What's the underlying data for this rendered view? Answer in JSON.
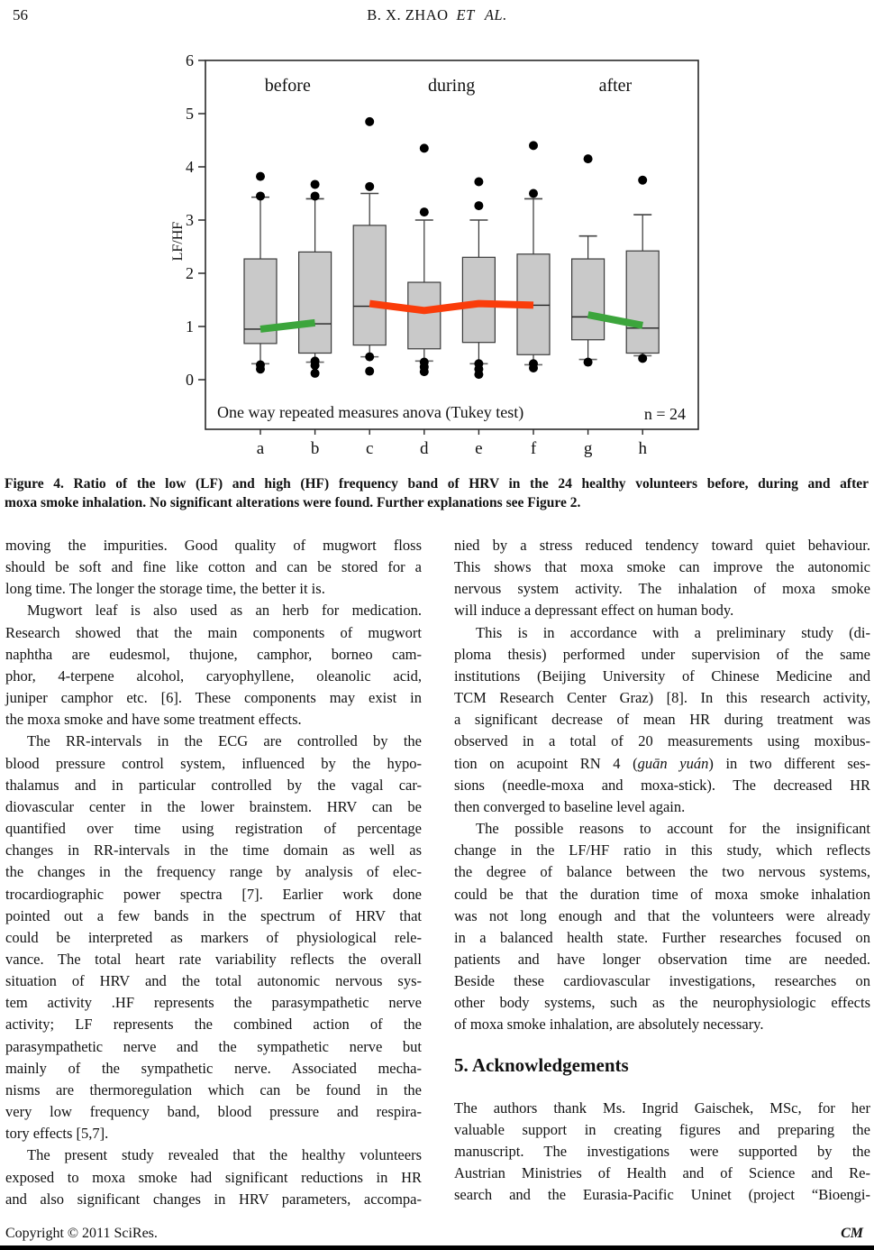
{
  "page": {
    "number": "56",
    "running_title": "B. X. ZHAO",
    "running_title_suffix": "ET AL.",
    "footer_left": "Copyright © 2011 SciRes.",
    "footer_right": "CM"
  },
  "figure": {
    "caption_lines": [
      {
        "text": "Figure 4. Ratio of the low (LF) and high (HF) frequency band of HRV in the 24 healthy volunteers before, during and after"
      },
      {
        "text": "moxa smoke inhalation. No significant alterations were found. Further explanations see Figure 2.",
        "end": true
      }
    ]
  },
  "chart_data": {
    "type": "boxplot",
    "ylabel": "LF/HF",
    "ylim": [
      0,
      6
    ],
    "yticks": [
      0,
      1,
      2,
      3,
      4,
      5,
      6
    ],
    "categories": [
      "a",
      "b",
      "c",
      "d",
      "e",
      "f",
      "g",
      "h"
    ],
    "group_labels": [
      {
        "label": "before",
        "from": 0,
        "to": 1
      },
      {
        "label": "during",
        "from": 2,
        "to": 5
      },
      {
        "label": "after",
        "from": 6,
        "to": 7
      }
    ],
    "annotation": "One way repeated measures anova (Tukey test)",
    "sample_size_label": "n = 24",
    "box_fill": "#c9c9c9",
    "accent_green": "#3ca53c",
    "accent_red": "#fa3c0a",
    "boxes": [
      {
        "category": "a",
        "whisker_low": 0.3,
        "q1": 0.68,
        "median": 0.95,
        "q3": 2.27,
        "whisker_high": 3.43,
        "outliers_high": [
          3.82,
          3.45
        ],
        "outliers_low": [
          0.28,
          0.2
        ]
      },
      {
        "category": "b",
        "whisker_low": 0.33,
        "q1": 0.5,
        "median": 1.05,
        "q3": 2.4,
        "whisker_high": 3.4,
        "outliers_high": [
          3.67,
          3.45
        ],
        "outliers_low": [
          0.35,
          0.27,
          0.12
        ]
      },
      {
        "category": "c",
        "whisker_low": 0.43,
        "q1": 0.65,
        "median": 1.38,
        "q3": 2.9,
        "whisker_high": 3.5,
        "outliers_high": [
          4.85,
          3.63
        ],
        "outliers_low": [
          0.43,
          0.16
        ]
      },
      {
        "category": "d",
        "whisker_low": 0.35,
        "q1": 0.58,
        "median": 1.3,
        "q3": 1.83,
        "whisker_high": 3.0,
        "outliers_high": [
          4.35,
          3.15
        ],
        "outliers_low": [
          0.33,
          0.24,
          0.15
        ]
      },
      {
        "category": "e",
        "whisker_low": 0.3,
        "q1": 0.7,
        "median": 1.38,
        "q3": 2.3,
        "whisker_high": 3.0,
        "outliers_high": [
          3.72,
          3.27
        ],
        "outliers_low": [
          0.3,
          0.2,
          0.1
        ]
      },
      {
        "category": "f",
        "whisker_low": 0.28,
        "q1": 0.47,
        "median": 1.4,
        "q3": 2.36,
        "whisker_high": 3.4,
        "outliers_high": [
          4.4,
          3.5
        ],
        "outliers_low": [
          0.3,
          0.22
        ]
      },
      {
        "category": "g",
        "whisker_low": 0.38,
        "q1": 0.75,
        "median": 1.18,
        "q3": 2.27,
        "whisker_high": 2.7,
        "outliers_high": [
          4.15
        ],
        "outliers_low": [
          0.33
        ]
      },
      {
        "category": "h",
        "whisker_low": 0.45,
        "q1": 0.5,
        "median": 0.97,
        "q3": 2.42,
        "whisker_high": 3.1,
        "outliers_high": [
          3.75
        ],
        "outliers_low": [
          0.4
        ]
      }
    ],
    "trend_lines": [
      {
        "name": "before-green",
        "color": "#3ca53c",
        "points": [
          {
            "cat": "a",
            "value": 0.95
          },
          {
            "cat": "b",
            "value": 1.07
          }
        ]
      },
      {
        "name": "during-red",
        "color": "#fa3c0a",
        "points": [
          {
            "cat": "c",
            "value": 1.43
          },
          {
            "cat": "d",
            "value": 1.3
          },
          {
            "cat": "e",
            "value": 1.43
          },
          {
            "cat": "f",
            "value": 1.4
          }
        ]
      },
      {
        "name": "after-green",
        "color": "#3ca53c",
        "points": [
          {
            "cat": "g",
            "value": 1.22
          },
          {
            "cat": "h",
            "value": 1.02
          }
        ]
      }
    ]
  },
  "body": {
    "left_column": {
      "lines": [
        {
          "text": "moving the impurities. Good quality of mugwort floss"
        },
        {
          "text": "should be soft and fine like cotton and can be stored for a"
        },
        {
          "text": "long time. The longer the storage time, the better it is.",
          "end": true
        },
        {
          "text": "Mugwort leaf is also used as an herb for medication.",
          "indent": true
        },
        {
          "text": "Research showed that the main components of mugwort"
        },
        {
          "text": "naphtha are eudesmol, thujone, camphor, borneo cam-"
        },
        {
          "text": "phor, 4-terpene alcohol, caryophyllene, oleanolic acid,"
        },
        {
          "text": "juniper camphor etc. [6]. These components may exist in"
        },
        {
          "text": "the moxa smoke and have some treatment effects.",
          "end": true
        },
        {
          "text": "The RR-intervals in the ECG are controlled by the",
          "indent": true
        },
        {
          "text": "blood pressure control system, influenced by the hypo-"
        },
        {
          "text": "thalamus and in particular controlled by the vagal car-"
        },
        {
          "text": "diovascular center in the lower brainstem. HRV can be"
        },
        {
          "text": "quantified over time using registration of percentage"
        },
        {
          "text": "changes in RR-intervals in the time domain as well as"
        },
        {
          "text": "the changes in the frequency range by analysis of elec-"
        },
        {
          "text": "trocardiographic power spectra [7]. Earlier work done"
        },
        {
          "text": "pointed out a few bands in the spectrum of HRV that"
        },
        {
          "text": "could be interpreted as markers of physiological rele-"
        },
        {
          "text": "vance. The total heart rate variability reflects the overall"
        },
        {
          "text": "situation of HRV and the total autonomic nervous sys-"
        },
        {
          "text": "tem activity .HF represents the parasympathetic nerve"
        },
        {
          "text": "activity; LF represents the combined action of the"
        },
        {
          "text": "parasympathetic nerve and the sympathetic nerve but"
        },
        {
          "text": "mainly of the sympathetic nerve. Associated mecha-"
        },
        {
          "text": "nisms are thermoregulation which can be found in the"
        },
        {
          "text": "very low frequency band, blood pressure and respira-"
        },
        {
          "text": "tory effects [5,7].",
          "end": true
        },
        {
          "text": "The present study revealed that the healthy volunteers",
          "indent": true
        },
        {
          "text": "exposed to moxa smoke had significant reductions in HR"
        },
        {
          "text": "and also significant changes in HRV parameters, accompa-"
        }
      ]
    },
    "right_column": {
      "lines_before_heading": [
        {
          "text": "nied by a stress reduced tendency toward quiet behaviour."
        },
        {
          "text": "This shows that moxa smoke can improve the autonomic"
        },
        {
          "text": "nervous system activity. The inhalation of moxa smoke"
        },
        {
          "text": "will induce a depressant effect on human body.",
          "end": true
        },
        {
          "text": "This is in accordance with a preliminary study (di-",
          "indent": true
        },
        {
          "text": "ploma thesis) performed under supervision of the same"
        },
        {
          "text": "institutions (Beijing University of Chinese Medicine and"
        },
        {
          "text": "TCM Research Center Graz) [8]. In this research activity,"
        },
        {
          "text": "a significant decrease of mean HR during treatment was"
        },
        {
          "text": "observed in a total of 20 measurements using moxibus-"
        },
        {
          "parts": [
            {
              "t": "tion on acupoint RN 4 ("
            },
            {
              "t": "guān yuán",
              "i": true
            },
            {
              "t": ") in two different ses-"
            }
          ]
        },
        {
          "text": "sions (needle-moxa and moxa-stick). The decreased HR"
        },
        {
          "text": "then converged to baseline level again.",
          "end": true
        },
        {
          "text": "The possible reasons to account for the insignificant",
          "indent": true
        },
        {
          "text": "change in the LF/HF ratio in this study, which reflects"
        },
        {
          "text": "the degree of balance between the two nervous systems,"
        },
        {
          "text": "could be that the duration time of moxa smoke inhalation"
        },
        {
          "text": "was not long enough and that the volunteers were already"
        },
        {
          "text": "in a balanced health state. Further researches focused on"
        },
        {
          "text": "patients and have longer observation time are needed."
        },
        {
          "text": "Beside these cardiovascular investigations, researches on"
        },
        {
          "text": "other body systems, such as the neurophysiologic effects"
        },
        {
          "text": "of moxa smoke inhalation, are absolutely necessary.",
          "end": true
        }
      ],
      "heading": "5. Acknowledgements",
      "lines_after_heading": [
        {
          "text": "The authors thank Ms. Ingrid Gaischek, MSc, for her"
        },
        {
          "text": "valuable support in creating figures and preparing the"
        },
        {
          "text": "manuscript. The investigations were supported by the"
        },
        {
          "text": "Austrian Ministries of Health and of Science and Re-"
        },
        {
          "text": "search and the Eurasia-Pacific Uninet (project “Bioengi-"
        }
      ]
    }
  }
}
